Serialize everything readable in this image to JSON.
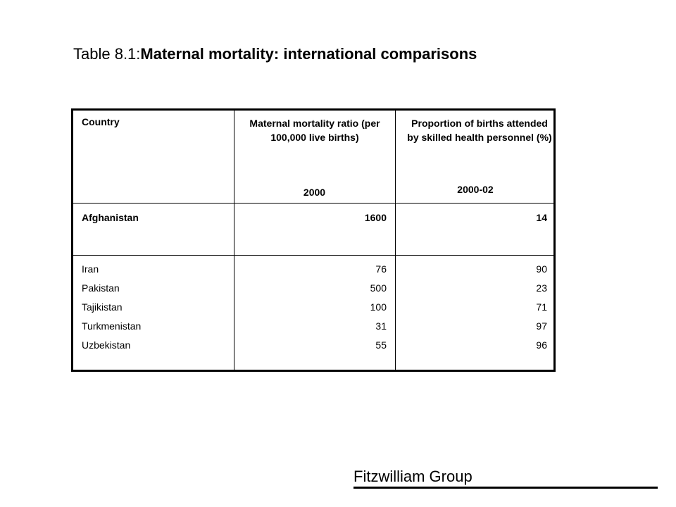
{
  "title": {
    "prefix": "Table 8.1:",
    "main": "Maternal mortality: international comparisons"
  },
  "table": {
    "headers": {
      "country": "Country",
      "mmr": "Maternal mortality ratio (per 100,000 live births)",
      "mmr_year": "2000",
      "skilled": "Proportion of births attended by skilled health personnel (%)",
      "skilled_year": "2000-02"
    },
    "highlight_row": {
      "country": "Afghanistan",
      "mmr": "1600",
      "skilled": "14"
    },
    "rows": [
      {
        "country": "Iran",
        "mmr": "76",
        "skilled": "90"
      },
      {
        "country": "Pakistan",
        "mmr": "500",
        "skilled": "23"
      },
      {
        "country": "Tajikistan",
        "mmr": "100",
        "skilled": "71"
      },
      {
        "country": "Turkmenistan",
        "mmr": "31",
        "skilled": "97"
      },
      {
        "country": "Uzbekistan",
        "mmr": "55",
        "skilled": "96"
      }
    ]
  },
  "footer": {
    "text": "Fitzwilliam Group"
  }
}
